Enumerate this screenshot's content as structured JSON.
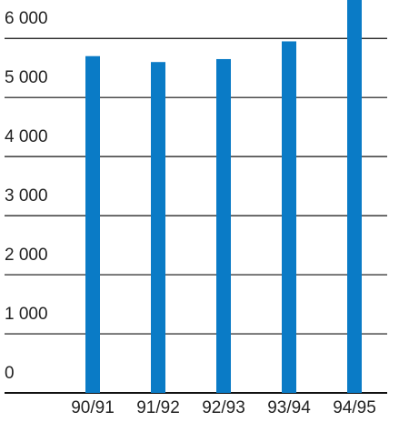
{
  "chart_data": {
    "type": "bar",
    "categories": [
      "90/91",
      "91/92",
      "92/93",
      "93/94",
      "94/95"
    ],
    "values": [
      5700,
      5600,
      5650,
      5950,
      6650
    ],
    "color": "#0a7bc6",
    "ylim": [
      0,
      6650
    ],
    "yticks": [
      0,
      {
        "value": 1000,
        "label": "1 000"
      },
      {
        "value": 2000,
        "label": "2 000"
      },
      {
        "value": 3000,
        "label": "3 000"
      },
      {
        "value": 4000,
        "label": "4 000"
      },
      {
        "value": 5000,
        "label": "5 000"
      },
      {
        "value": 6000,
        "label": "6 000"
      }
    ],
    "grid": true
  }
}
